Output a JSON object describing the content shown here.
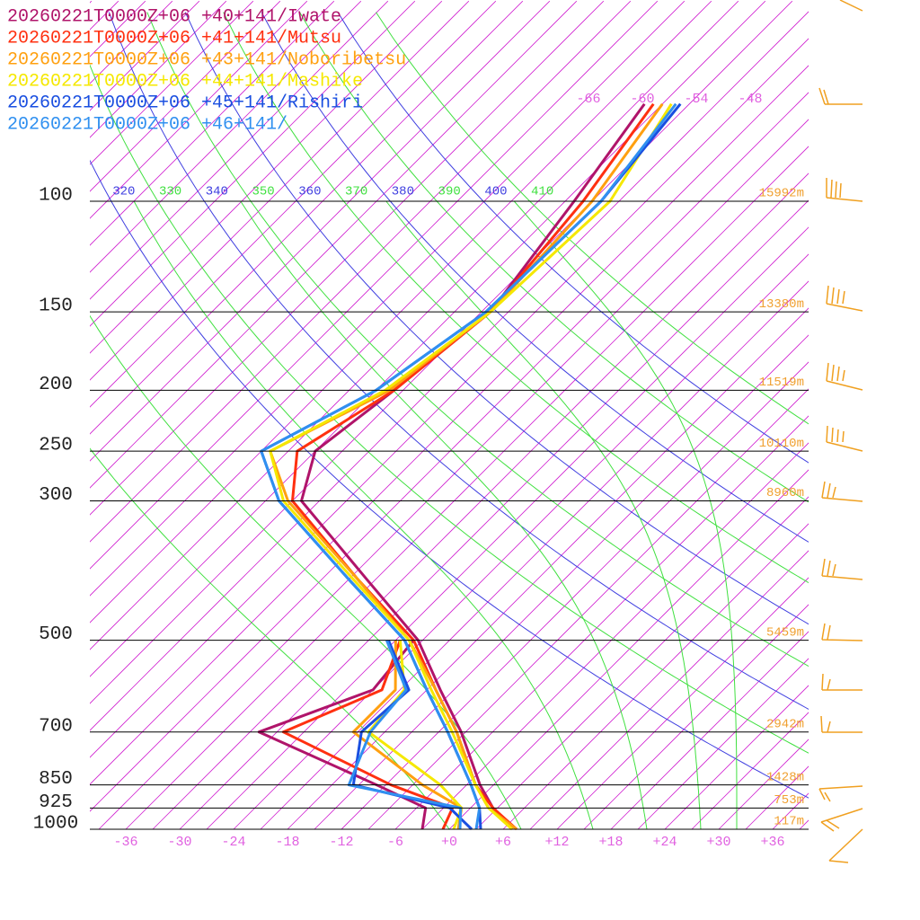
{
  "chart_data": {
    "type": "skewt",
    "levels": [
      1000,
      925,
      850,
      700,
      600,
      500,
      400,
      300,
      250,
      200,
      150,
      100,
      70
    ],
    "series": [
      {
        "name": "20260221T0000Z+06 +40+141/Iwate",
        "color": "#b0146a",
        "temperature": [
          7,
          2.5,
          -1.5,
          -9.5,
          -16.5,
          -24.5,
          -37,
          -53,
          -57,
          -55,
          -53,
          -56,
          -59
        ],
        "dewpoint": [
          -3,
          -5,
          -13,
          -32,
          -24,
          -25,
          null,
          null,
          null,
          null,
          null,
          null,
          null
        ]
      },
      {
        "name": "20260221T0000Z+06 +41+141/Mutsu",
        "color": "#ff3010",
        "temperature": [
          7.5,
          2.5,
          -2,
          -10,
          -17,
          -25,
          -38,
          -54,
          -59,
          -55,
          -53,
          -55,
          -58
        ],
        "dewpoint": [
          -0.7,
          -2,
          -11.4,
          -29.3,
          -23,
          -26.5,
          null,
          null,
          null,
          null,
          null,
          null,
          null
        ]
      },
      {
        "name": "20260221T0000Z+06 +43+141/Noboribetsu",
        "color": "#ffa010",
        "temperature": [
          7.5,
          2,
          -2,
          -10,
          -17,
          -25.5,
          -38,
          -54.5,
          -62,
          -55.5,
          -53,
          -54,
          -57
        ],
        "dewpoint": [
          1,
          -1,
          -7.9,
          -21.5,
          -21.5,
          -27,
          null,
          null,
          null,
          null,
          null,
          null,
          null
        ]
      },
      {
        "name": "20260221T0000Z+06 +44+141/Mashike",
        "color": "#f5e800",
        "temperature": [
          7,
          2,
          -2,
          -10.5,
          -17.5,
          -25.5,
          -38.5,
          -55,
          -62,
          -56,
          -53,
          -52,
          -56
        ],
        "dewpoint": [
          0.5,
          -1,
          -5.9,
          -19.8,
          -20.5,
          -26.5,
          null,
          null,
          null,
          null,
          null,
          null,
          null
        ]
      },
      {
        "name": "20260221T0000Z+06 +45+141/Rishiri",
        "color": "#1a4fe0",
        "temperature": [
          3.5,
          1,
          -2.5,
          -11,
          -18,
          -26,
          -39,
          -55.5,
          -63,
          -57,
          -53.5,
          -53,
          -55
        ],
        "dewpoint": [
          2.5,
          -2.3,
          -15.6,
          -20.6,
          -20,
          -27.8,
          null,
          null,
          null,
          null,
          null,
          null,
          null
        ]
      },
      {
        "name": "20260221T0000Z+06 +46+141/",
        "color": "#3090f0",
        "temperature": [
          3,
          1,
          -2.5,
          -11,
          -18,
          -26,
          -39,
          -55.5,
          -63,
          -57,
          -53.5,
          -53,
          -55.5
        ],
        "dewpoint": [
          1.2,
          -1.1,
          -16.1,
          -19.6,
          -20.3,
          -28,
          null,
          null,
          null,
          null,
          null,
          null,
          null
        ]
      }
    ],
    "ylim": [
      1000,
      48
    ],
    "yticks": [
      100,
      150,
      200,
      250,
      300,
      500,
      700,
      850,
      925,
      1000
    ],
    "xlim": [
      -40,
      40
    ],
    "xticks": [
      -36,
      -30,
      -24,
      -18,
      -12,
      {
        "value": -6,
        "label": "-6"
      },
      {
        "value": 0,
        "label": "+0"
      },
      {
        "value": 6,
        "label": "+6"
      },
      {
        "value": 12,
        "label": "+12"
      },
      {
        "value": 18,
        "label": "+18"
      },
      {
        "value": 24,
        "label": "+24"
      },
      {
        "value": 30,
        "label": "+30"
      },
      {
        "value": 36,
        "label": "+36"
      }
    ],
    "isotherm_labels": [
      -66,
      -60,
      -54,
      -48
    ],
    "theta_labels": [
      320,
      330,
      340,
      350,
      360,
      370,
      380,
      390,
      400,
      410
    ],
    "heights": {
      "levels": [
        100,
        150,
        200,
        250,
        300,
        500,
        700,
        850,
        925,
        1000
      ],
      "values": [
        15992,
        13380,
        11519,
        10110,
        8960,
        5459,
        2942,
        1428,
        753,
        117
      ],
      "value_labels": [
        "15992m",
        "13380m",
        "11519m",
        "10110m",
        "8960m",
        "5459m",
        "2942m",
        "1428m",
        "753m",
        "117m"
      ]
    }
  }
}
